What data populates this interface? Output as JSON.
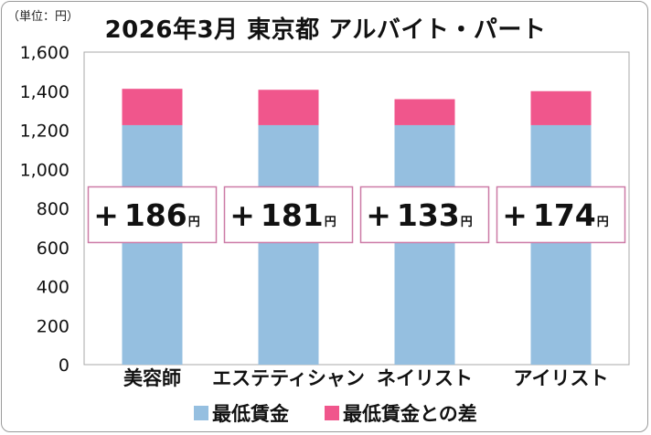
{
  "unit_label": "（単位：円）",
  "title": "2026年3月 東京都 アルバイト・パート",
  "colors": {
    "base": "#95bfe0",
    "diff": "#f0568c",
    "box_border": "#cc7aa6"
  },
  "chart_data": {
    "type": "bar",
    "stacked": true,
    "title": "2026年3月 東京都 アルバイト・パート",
    "unit": "（単位：円）",
    "categories": [
      "美容師",
      "エステティシャン",
      "ネイリスト",
      "アイリスト"
    ],
    "series": [
      {
        "name": "最低賃金",
        "values": [
          1226,
          1226,
          1226,
          1226
        ]
      },
      {
        "name": "最低賃金との差",
        "values": [
          186,
          181,
          133,
          174
        ]
      }
    ],
    "diff_labels": [
      {
        "sign": "+",
        "value": "186",
        "unit": "円"
      },
      {
        "sign": "+",
        "value": "181",
        "unit": "円"
      },
      {
        "sign": "+",
        "value": "133",
        "unit": "円"
      },
      {
        "sign": "+",
        "value": "174",
        "unit": "円"
      }
    ],
    "ylim": [
      0,
      1600
    ],
    "yticks": [
      0,
      200,
      400,
      600,
      800,
      1000,
      1200,
      1400,
      1600
    ],
    "ytick_labels": [
      "0",
      "200",
      "400",
      "600",
      "800",
      "1,000",
      "1,200",
      "1,400",
      "1,600"
    ],
    "grid": false,
    "legend_position": "bottom"
  }
}
